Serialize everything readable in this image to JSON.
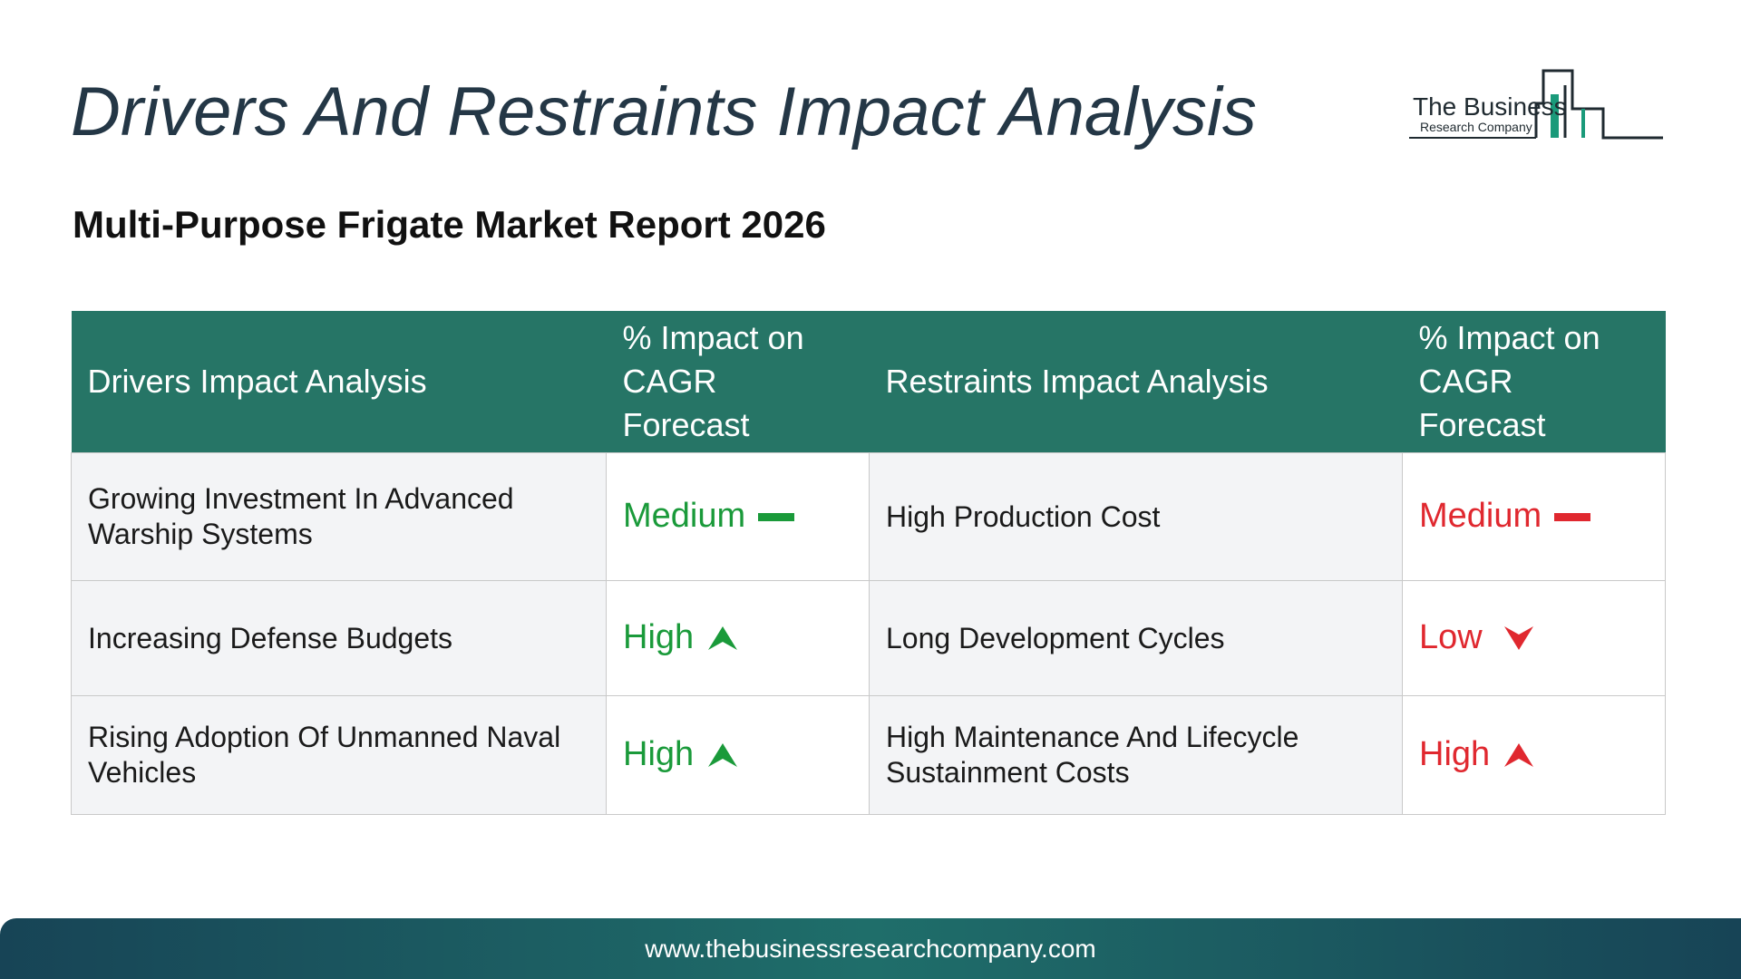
{
  "header": {
    "title": "Drivers And Restraints Impact Analysis",
    "subtitle": "Multi-Purpose Frigate Market Report 2026"
  },
  "logo": {
    "name": "The Business",
    "tagline": "Research Company",
    "colors": {
      "dark": "#1f2a30",
      "accent": "#1a9a7a"
    }
  },
  "table": {
    "headers": {
      "drivers": "Drivers Impact Analysis",
      "drivers_impact_line1": "% Impact on",
      "drivers_impact_line2": "CAGR Forecast",
      "restraints": "Restraints Impact Analysis",
      "restraints_impact_line1": "% Impact on",
      "restraints_impact_line2": "CAGR Forecast"
    },
    "rows": [
      {
        "driver": "Growing Investment In Advanced Warship Systems",
        "driver_impact": "Medium",
        "driver_icon": "dash-icon",
        "restraint": "High Production Cost",
        "restraint_impact": "Medium",
        "restraint_icon": "dash-icon"
      },
      {
        "driver": "Increasing Defense Budgets",
        "driver_impact": "High",
        "driver_icon": "up-arrow-icon",
        "restraint": "Long Development Cycles",
        "restraint_impact": "Low",
        "restraint_icon": "down-arrow-icon"
      },
      {
        "driver": "Rising Adoption Of Unmanned Naval Vehicles",
        "driver_impact": "High",
        "driver_icon": "up-arrow-icon",
        "restraint": "High Maintenance And Lifecycle Sustainment Costs",
        "restraint_impact": "High",
        "restraint_icon": "up-arrow-icon"
      }
    ]
  },
  "colors": {
    "header_bg": "#267566",
    "driver_value": "#1a9a3a",
    "restraint_value": "#e0282f",
    "title": "#243746"
  },
  "footer": {
    "url": "www.thebusinessresearchcompany.com"
  }
}
